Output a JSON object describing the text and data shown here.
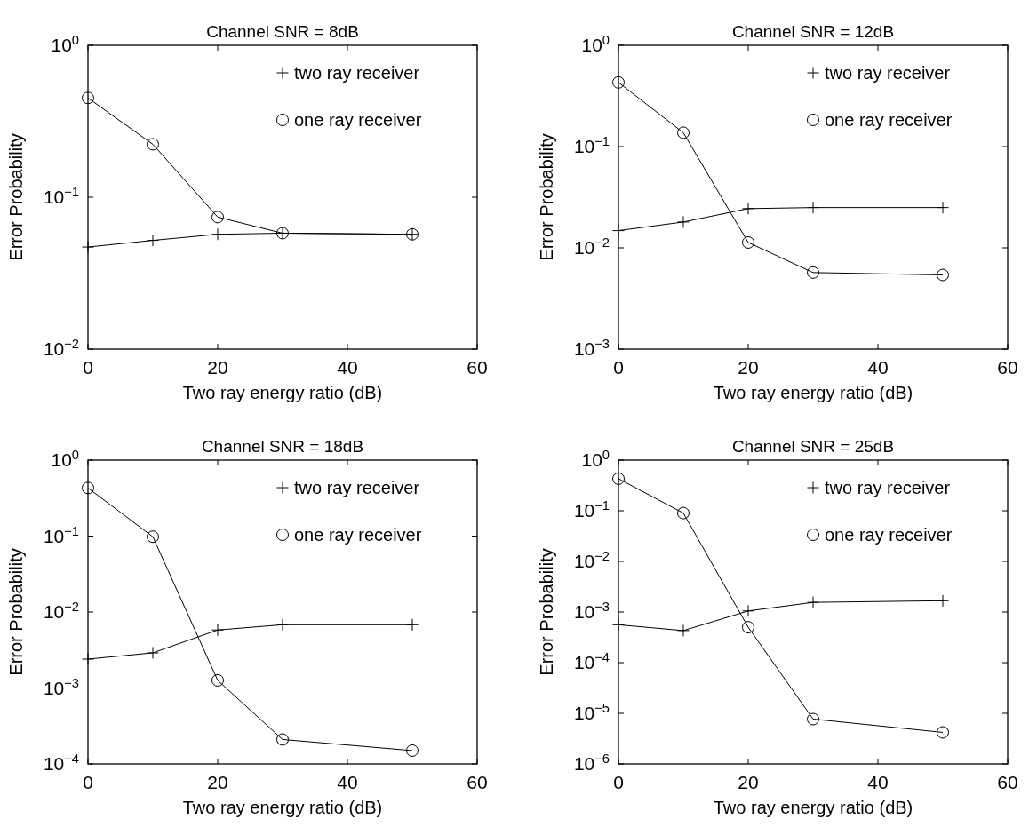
{
  "chart_data": [
    {
      "type": "line",
      "title": "Channel SNR = 8dB",
      "xlabel": "Two ray energy ratio (dB)",
      "ylabel": "Error Probability",
      "x": [
        0,
        10,
        20,
        30,
        50
      ],
      "log": "y",
      "xlim": [
        0,
        60
      ],
      "xticks": [
        0,
        20,
        40,
        60
      ],
      "ylim": [
        0.01,
        1
      ],
      "yticks": [
        {
          "value": 0.01,
          "label": "10$^{−2}$"
        },
        {
          "value": 0.1,
          "label": "10$^{−1}$"
        },
        {
          "value": 1,
          "label": "10$^{0}$"
        }
      ],
      "legend": "top right",
      "grid": false,
      "series": [
        {
          "name": "two ray receiver",
          "color": "#000000",
          "marker": "cross",
          "values": [
            0.047,
            0.052,
            0.057,
            0.058,
            0.057
          ]
        },
        {
          "name": "one ray receiver",
          "color": "#000000",
          "marker": "circle",
          "values": [
            0.45,
            0.223,
            0.074,
            0.058,
            0.057
          ]
        }
      ]
    },
    {
      "type": "line",
      "title": "Channel SNR = 12dB",
      "xlabel": "Two ray energy ratio (dB)",
      "ylabel": "Error Probability",
      "x": [
        0,
        10,
        20,
        30,
        50
      ],
      "log": "y",
      "xlim": [
        0,
        60
      ],
      "xticks": [
        0,
        20,
        40,
        60
      ],
      "ylim": [
        0.001,
        1
      ],
      "yticks": [
        {
          "value": 0.001,
          "label": "10$^{−3}$"
        },
        {
          "value": 0.01,
          "label": "10$^{−2}$"
        },
        {
          "value": 0.1,
          "label": "10$^{−1}$"
        },
        {
          "value": 1,
          "label": "10$^{0}$"
        }
      ],
      "legend": "top right",
      "grid": false,
      "series": [
        {
          "name": "two ray receiver",
          "color": "#000000",
          "marker": "cross",
          "values": [
            0.0148,
            0.018,
            0.0244,
            0.025,
            0.025
          ]
        },
        {
          "name": "one ray receiver",
          "color": "#000000",
          "marker": "circle",
          "values": [
            0.43,
            0.137,
            0.0113,
            0.0057,
            0.0054
          ]
        }
      ]
    },
    {
      "type": "line",
      "title": "Channel SNR = 18dB",
      "xlabel": "Two ray energy ratio (dB)",
      "ylabel": "Error Probability",
      "x": [
        0,
        10,
        20,
        30,
        50
      ],
      "log": "y",
      "xlim": [
        0,
        60
      ],
      "xticks": [
        0,
        20,
        40,
        60
      ],
      "ylim": [
        0.0001,
        1
      ],
      "yticks": [
        {
          "value": 0.0001,
          "label": "10$^{−4}$"
        },
        {
          "value": 0.001,
          "label": "10$^{−3}$"
        },
        {
          "value": 0.01,
          "label": "10$^{−2}$"
        },
        {
          "value": 0.1,
          "label": "10$^{−1}$"
        },
        {
          "value": 1,
          "label": "10$^{0}$"
        }
      ],
      "legend": "top right",
      "grid": false,
      "series": [
        {
          "name": "two ray receiver",
          "color": "#000000",
          "marker": "cross",
          "values": [
            0.0024,
            0.0029,
            0.0058,
            0.0068,
            0.0068
          ]
        },
        {
          "name": "one ray receiver",
          "color": "#000000",
          "marker": "circle",
          "values": [
            0.43,
            0.098,
            0.00126,
            0.00021,
            0.00015
          ]
        }
      ]
    },
    {
      "type": "line",
      "title": "Channel SNR = 25dB",
      "xlabel": "Two ray energy ratio (dB)",
      "ylabel": "Error Probability",
      "x": [
        0,
        10,
        20,
        30,
        50
      ],
      "log": "y",
      "xlim": [
        0,
        60
      ],
      "xticks": [
        0,
        20,
        40,
        60
      ],
      "ylim": [
        1e-06,
        1
      ],
      "yticks": [
        {
          "value": 1e-06,
          "label": "10$^{−6}$"
        },
        {
          "value": 1e-05,
          "label": "10$^{−5}$"
        },
        {
          "value": 0.0001,
          "label": "10$^{−4}$"
        },
        {
          "value": 0.001,
          "label": "10$^{−3}$"
        },
        {
          "value": 0.01,
          "label": "10$^{−2}$"
        },
        {
          "value": 0.1,
          "label": "10$^{−1}$"
        },
        {
          "value": 1,
          "label": "10$^{0}$"
        }
      ],
      "legend": "top right",
      "grid": false,
      "series": [
        {
          "name": "two ray receiver",
          "color": "#000000",
          "marker": "cross",
          "values": [
            0.00056,
            0.00043,
            0.00105,
            0.00155,
            0.00167
          ]
        },
        {
          "name": "one ray receiver",
          "color": "#000000",
          "marker": "circle",
          "values": [
            0.43,
            0.09,
            0.0005,
            7.7e-06,
            4.2e-06
          ]
        }
      ]
    }
  ]
}
